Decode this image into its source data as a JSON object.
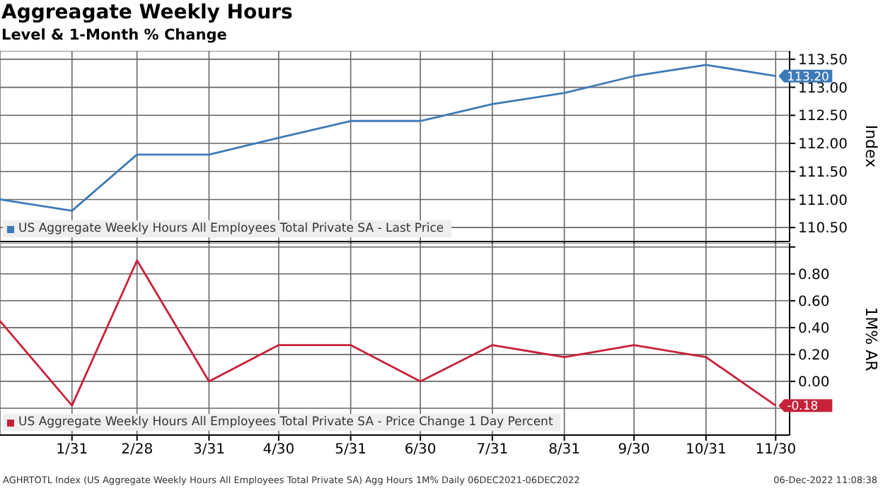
{
  "chart_data": [
    {
      "type": "line",
      "title": "Aggreagate Weekly Hours",
      "subtitle": "Level & 1-Month % Change",
      "ylabel": "Index",
      "x": [
        "2021-12-31",
        "2022-01-31",
        "2022-02-28",
        "2022-03-31",
        "2022-04-30",
        "2022-05-31",
        "2022-06-30",
        "2022-07-31",
        "2022-08-31",
        "2022-09-30",
        "2022-10-31",
        "2022-11-30"
      ],
      "series": [
        {
          "name": "US Aggregate Weekly Hours All Employees Total Private SA - Last Price",
          "color": "#3d7ab8",
          "values": [
            111.0,
            110.8,
            111.8,
            111.8,
            112.1,
            112.4,
            112.4,
            112.7,
            112.9,
            113.2,
            113.4,
            113.2
          ],
          "value_labels": [
            null,
            null,
            null,
            null,
            null,
            null,
            null,
            null,
            null,
            null,
            null,
            "113.20"
          ]
        }
      ],
      "xlim": [
        "2021-12-31",
        "2022-12-06"
      ],
      "xticks": [
        {
          "value": "2022-01-31",
          "label": null
        },
        {
          "value": "2022-02-28",
          "label": null
        },
        {
          "value": "2022-03-31",
          "label": null
        },
        {
          "value": "2022-04-30",
          "label": null
        },
        {
          "value": "2022-05-31",
          "label": null
        },
        {
          "value": "2022-06-30",
          "label": null
        },
        {
          "value": "2022-07-31",
          "label": null
        },
        {
          "value": "2022-08-31",
          "label": null
        },
        {
          "value": "2022-09-30",
          "label": null
        },
        {
          "value": "2022-10-31",
          "label": null
        },
        {
          "value": "2022-11-30",
          "label": null
        }
      ],
      "ylim": [
        110.25,
        113.65
      ],
      "yticks": [
        {
          "value": 110.5,
          "label": "110.50"
        },
        {
          "value": 111,
          "label": "111.00"
        },
        {
          "value": 111.5,
          "label": "111.50"
        },
        {
          "value": 112,
          "label": "112.00"
        },
        {
          "value": 112.5,
          "label": "112.50"
        },
        {
          "value": 113,
          "label": "113.00"
        },
        {
          "value": 113.5,
          "label": "113.50"
        }
      ],
      "tick_labels": "y",
      "grid": true,
      "legend": "bottom left",
      "marker": "none",
      "line_style": "solid"
    },
    {
      "type": "line",
      "ylabel": "1M% AR",
      "x": [
        "2021-12-31",
        "2022-01-31",
        "2022-02-28",
        "2022-03-31",
        "2022-04-30",
        "2022-05-31",
        "2022-06-30",
        "2022-07-31",
        "2022-08-31",
        "2022-09-30",
        "2022-10-31",
        "2022-11-30"
      ],
      "series": [
        {
          "name": "US Aggregate Weekly Hours All Employees Total Private SA - Price Change 1 Day Percent",
          "color": "#c8213a",
          "values": [
            0.45,
            -0.18,
            0.9,
            0.0,
            0.27,
            0.27,
            0.0,
            0.27,
            0.18,
            0.27,
            0.18,
            -0.18
          ],
          "value_labels": [
            null,
            null,
            null,
            null,
            null,
            null,
            null,
            null,
            null,
            null,
            null,
            "-0.18"
          ]
        }
      ],
      "xlim": [
        "2021-12-31",
        "2022-12-06"
      ],
      "xticks": [
        {
          "value": "2022-01-31",
          "label": "1/31"
        },
        {
          "value": "2022-02-28",
          "label": "2/28"
        },
        {
          "value": "2022-03-31",
          "label": "3/31"
        },
        {
          "value": "2022-04-30",
          "label": "4/30"
        },
        {
          "value": "2022-05-31",
          "label": "5/31"
        },
        {
          "value": "2022-06-30",
          "label": "6/30"
        },
        {
          "value": "2022-07-31",
          "label": "7/31"
        },
        {
          "value": "2022-08-31",
          "label": "8/31"
        },
        {
          "value": "2022-09-30",
          "label": "9/30"
        },
        {
          "value": "2022-10-31",
          "label": "10/31"
        },
        {
          "value": "2022-11-30",
          "label": "11/30"
        }
      ],
      "ylim": [
        -0.4,
        1.03
      ],
      "yticks": [
        {
          "value": -0.2,
          "label": null
        },
        {
          "value": 0,
          "label": "0.00"
        },
        {
          "value": 0.2,
          "label": "0.20"
        },
        {
          "value": 0.4,
          "label": "0.40"
        },
        {
          "value": 0.6,
          "label": "0.60"
        },
        {
          "value": 0.8,
          "label": "0.80"
        },
        {
          "value": 1.0,
          "label": null
        }
      ],
      "grid": true,
      "legend": "bottom left",
      "marker": "none",
      "line_style": "solid",
      "annotations": [
        "AGHRTOTL Index (US Aggregate Weekly Hours All Employees Total Private SA) Agg Hours 1M% Daily 06DEC2021-06DEC2022",
        "06-Dec-2022 11:08:38"
      ]
    }
  ]
}
